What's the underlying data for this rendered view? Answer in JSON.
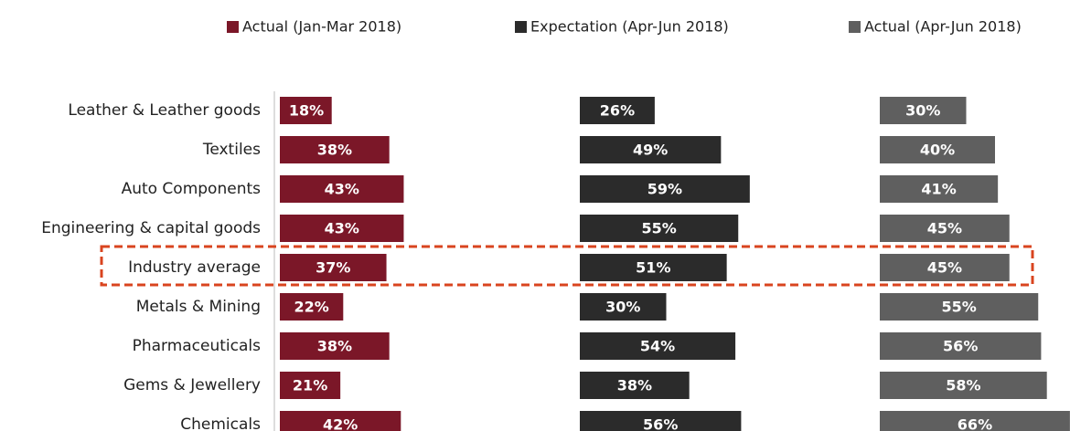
{
  "chart_data": {
    "type": "bar",
    "categories": [
      "Leather & Leather goods",
      "Textiles",
      "Auto Components",
      "Engineering & capital goods",
      "Industry average",
      "Metals & Mining",
      "Pharmaceuticals",
      "Gems & Jewellery",
      "Chemicals"
    ],
    "series": [
      {
        "name": "Actual (Jan-Mar 2018)",
        "color": "#7b1728",
        "values": [
          18,
          38,
          43,
          43,
          37,
          22,
          38,
          21,
          42
        ],
        "value_labels": [
          "18%",
          "38%",
          "43%",
          "43%",
          "37%",
          "22%",
          "38%",
          "21%",
          "42%"
        ]
      },
      {
        "name": "Expectation (Apr-Jun 2018)",
        "color": "#2b2b2b",
        "values": [
          26,
          49,
          59,
          55,
          51,
          30,
          54,
          38,
          56
        ],
        "value_labels": [
          "26%",
          "49%",
          "59%",
          "55%",
          "51%",
          "30%",
          "54%",
          "38%",
          "56%"
        ]
      },
      {
        "name": "Actual (Apr-Jun 2018)",
        "color": "#5f5f5f",
        "values": [
          30,
          40,
          41,
          45,
          45,
          55,
          56,
          58,
          66
        ],
        "value_labels": [
          "30%",
          "40%",
          "41%",
          "45%",
          "45%",
          "55%",
          "56%",
          "58%",
          "66%"
        ]
      }
    ]
  }
}
